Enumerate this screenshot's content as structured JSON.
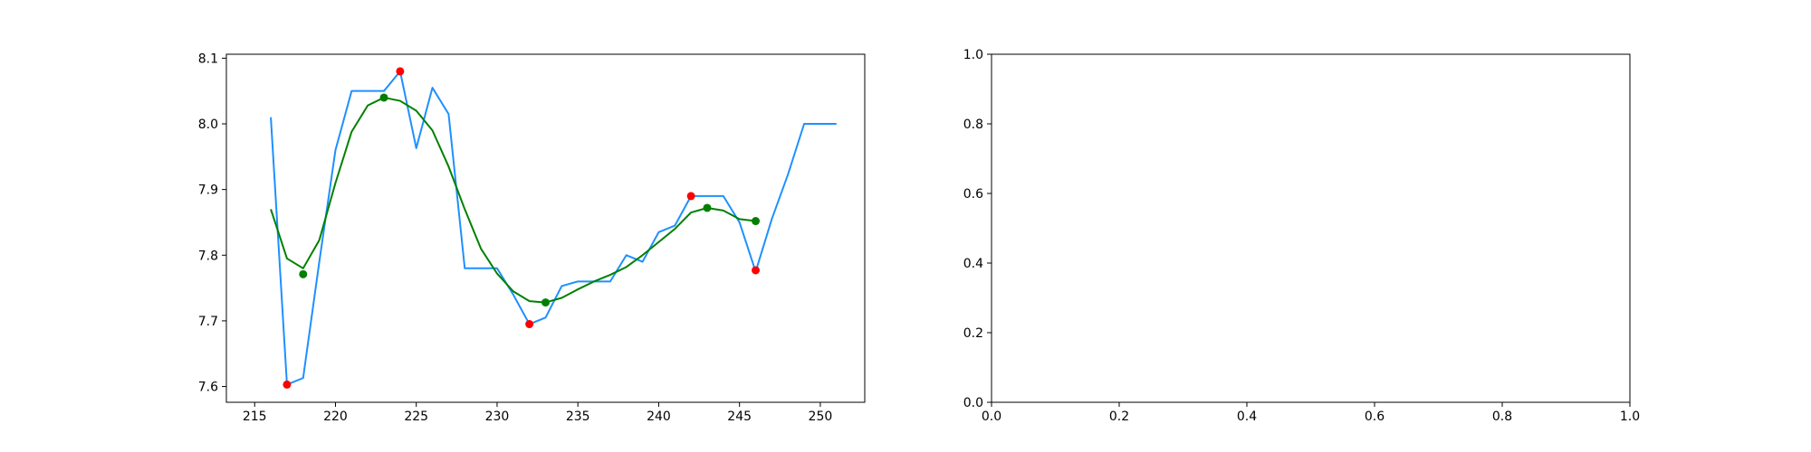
{
  "chart_data": [
    {
      "type": "line",
      "title": "",
      "xlabel": "",
      "ylabel": "",
      "xlim": [
        213.25,
        252.75
      ],
      "ylim": [
        7.576,
        8.106
      ],
      "xticks": [
        {
          "value": 215,
          "label": "215"
        },
        {
          "value": 220,
          "label": "220"
        },
        {
          "value": 225,
          "label": "225"
        },
        {
          "value": 230,
          "label": "230"
        },
        {
          "value": 235,
          "label": "235"
        },
        {
          "value": 240,
          "label": "240"
        },
        {
          "value": 245,
          "label": "245"
        },
        {
          "value": 250,
          "label": "250"
        }
      ],
      "yticks": [
        {
          "value": 7.6,
          "label": "7.6"
        },
        {
          "value": 7.7,
          "label": "7.7"
        },
        {
          "value": 7.8,
          "label": "7.8"
        },
        {
          "value": 7.9,
          "label": "7.9"
        },
        {
          "value": 8.0,
          "label": "8.0"
        },
        {
          "value": 8.1,
          "label": "8.1"
        }
      ],
      "grid": false,
      "series": [
        {
          "kind": "line",
          "color": "#1e90ff",
          "x": [
            216,
            217,
            218,
            219,
            220,
            221,
            222,
            223,
            224,
            225,
            226,
            227,
            228,
            229,
            230,
            231,
            232,
            233,
            234,
            235,
            236,
            237,
            238,
            239,
            240,
            241,
            242,
            243,
            244,
            245,
            246,
            247,
            248,
            249,
            250,
            251
          ],
          "y": [
            8.01,
            7.603,
            7.613,
            7.79,
            7.96,
            8.05,
            8.05,
            8.05,
            8.08,
            7.963,
            8.055,
            8.015,
            7.78,
            7.78,
            7.78,
            7.74,
            7.695,
            7.705,
            7.753,
            7.76,
            7.76,
            7.76,
            7.8,
            7.79,
            7.835,
            7.845,
            7.89,
            7.89,
            7.89,
            7.85,
            7.775,
            7.855,
            7.923,
            8.0,
            8.0,
            8.0
          ]
        },
        {
          "kind": "line",
          "color": "#008000",
          "x": [
            216,
            217,
            218,
            219,
            220,
            221,
            222,
            223,
            224,
            225,
            226,
            227,
            228,
            229,
            230,
            231,
            232,
            233,
            234,
            235,
            236,
            237,
            238,
            239,
            240,
            241,
            242,
            243,
            244,
            245,
            246
          ],
          "y": [
            7.87,
            7.795,
            7.78,
            7.823,
            7.91,
            7.988,
            8.028,
            8.04,
            8.035,
            8.02,
            7.99,
            7.935,
            7.87,
            7.81,
            7.772,
            7.745,
            7.73,
            7.728,
            7.735,
            7.748,
            7.76,
            7.77,
            7.782,
            7.8,
            7.82,
            7.84,
            7.865,
            7.872,
            7.868,
            7.855,
            7.852
          ]
        },
        {
          "kind": "scatter",
          "color": "#ff0000",
          "x": [
            217,
            224,
            232,
            242,
            246
          ],
          "y": [
            7.603,
            8.08,
            7.695,
            7.89,
            7.777
          ]
        },
        {
          "kind": "scatter",
          "color": "#008000",
          "x": [
            218,
            223,
            233,
            243,
            246
          ],
          "y": [
            7.771,
            8.04,
            7.728,
            7.872,
            7.852
          ]
        }
      ]
    },
    {
      "type": "line",
      "title": "",
      "xlabel": "",
      "ylabel": "",
      "xlim": [
        0.0,
        1.0
      ],
      "ylim": [
        0.0,
        1.0
      ],
      "xticks": [
        {
          "value": 0.0,
          "label": "0.0"
        },
        {
          "value": 0.2,
          "label": "0.2"
        },
        {
          "value": 0.4,
          "label": "0.4"
        },
        {
          "value": 0.6,
          "label": "0.6"
        },
        {
          "value": 0.8,
          "label": "0.8"
        },
        {
          "value": 1.0,
          "label": "1.0"
        }
      ],
      "yticks": [
        {
          "value": 0.0,
          "label": "0.0"
        },
        {
          "value": 0.2,
          "label": "0.2"
        },
        {
          "value": 0.4,
          "label": "0.4"
        },
        {
          "value": 0.6,
          "label": "0.6"
        },
        {
          "value": 0.8,
          "label": "0.8"
        },
        {
          "value": 1.0,
          "label": "1.0"
        }
      ],
      "grid": false,
      "series": []
    }
  ]
}
